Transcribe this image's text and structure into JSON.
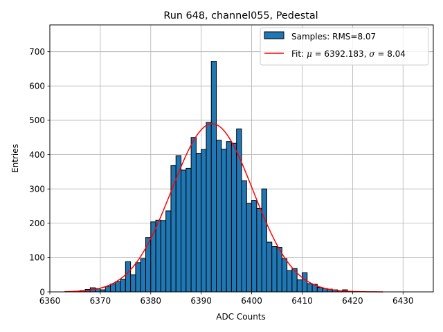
{
  "chart_data": {
    "type": "bar",
    "title": "Run 648, channel055, Pedestal",
    "xlabel": "ADC Counts",
    "ylabel": "Entries",
    "xlim": [
      6360,
      6436
    ],
    "ylim": [
      0,
      778
    ],
    "xticks": [
      6360,
      6370,
      6380,
      6390,
      6400,
      6410,
      6420,
      6430
    ],
    "yticks": [
      0,
      100,
      200,
      300,
      400,
      500,
      600,
      700
    ],
    "grid": true,
    "legend_position": "top-right",
    "legend": [
      {
        "label": "Samples: RMS=8.07",
        "kind": "patch",
        "color": "#1f77b4"
      },
      {
        "label_parts": [
          {
            "t": "Fit: ",
            "i": false
          },
          {
            "t": "μ",
            "i": true
          },
          {
            "t": " = 6392.183, ",
            "i": false
          },
          {
            "t": "σ",
            "i": true
          },
          {
            "t": " = 8.04",
            "i": false
          }
        ],
        "kind": "line",
        "color": "#ff0000"
      }
    ],
    "histogram": {
      "name": "Samples: RMS=8.07",
      "bin_width": 1,
      "bins": [
        [
          6363,
          1
        ],
        [
          6364,
          1
        ],
        [
          6365,
          2
        ],
        [
          6366,
          4
        ],
        [
          6367,
          7
        ],
        [
          6368,
          12
        ],
        [
          6369,
          10
        ],
        [
          6370,
          6
        ],
        [
          6371,
          16
        ],
        [
          6372,
          23
        ],
        [
          6373,
          30
        ],
        [
          6374,
          37
        ],
        [
          6375,
          88
        ],
        [
          6376,
          50
        ],
        [
          6377,
          85
        ],
        [
          6378,
          97
        ],
        [
          6379,
          158
        ],
        [
          6380,
          204
        ],
        [
          6381,
          209
        ],
        [
          6382,
          208
        ],
        [
          6383,
          236
        ],
        [
          6384,
          368
        ],
        [
          6385,
          397
        ],
        [
          6386,
          355
        ],
        [
          6387,
          360
        ],
        [
          6388,
          450
        ],
        [
          6389,
          404
        ],
        [
          6390,
          415
        ],
        [
          6391,
          494
        ],
        [
          6392,
          672
        ],
        [
          6393,
          442
        ],
        [
          6394,
          416
        ],
        [
          6395,
          438
        ],
        [
          6396,
          433
        ],
        [
          6397,
          475
        ],
        [
          6398,
          324
        ],
        [
          6399,
          258
        ],
        [
          6400,
          267
        ],
        [
          6401,
          243
        ],
        [
          6402,
          300
        ],
        [
          6403,
          145
        ],
        [
          6404,
          132
        ],
        [
          6405,
          130
        ],
        [
          6406,
          97
        ],
        [
          6407,
          62
        ],
        [
          6408,
          68
        ],
        [
          6409,
          35
        ],
        [
          6410,
          56
        ],
        [
          6411,
          24
        ],
        [
          6412,
          22
        ],
        [
          6413,
          13
        ],
        [
          6414,
          10
        ],
        [
          6415,
          8
        ],
        [
          6416,
          6
        ],
        [
          6417,
          3
        ],
        [
          6418,
          6
        ],
        [
          6419,
          2
        ]
      ],
      "color": "#1f77b4"
    },
    "fit": {
      "name": "Fit",
      "type": "gaussian",
      "mu": 6392.183,
      "sigma": 8.04,
      "amplitude": 490,
      "x_range": [
        6363,
        6426
      ],
      "color": "#ff0000"
    }
  }
}
